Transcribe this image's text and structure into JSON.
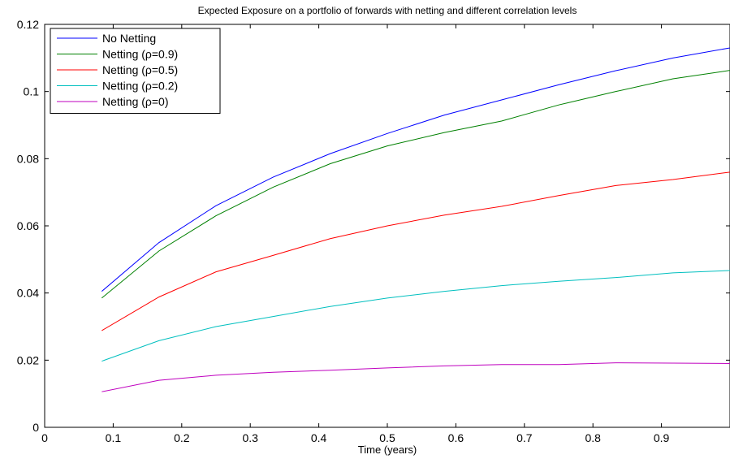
{
  "chart_data": {
    "type": "line",
    "title": "Expected Exposure on a portfolio of forwards with netting and different correlation levels",
    "xlabel": "Time (years)",
    "ylabel": "",
    "xlim": [
      0,
      1
    ],
    "ylim": [
      0,
      0.12
    ],
    "xticks": [
      "0",
      "0.1",
      "0.2",
      "0.3",
      "0.4",
      "0.5",
      "0.6",
      "0.7",
      "0.8",
      "0.9"
    ],
    "xtick_values": [
      0,
      0.1,
      0.2,
      0.3,
      0.4,
      0.5,
      0.6,
      0.7,
      0.8,
      0.9
    ],
    "yticks": [
      "0",
      "0.02",
      "0.04",
      "0.06",
      "0.08",
      "0.1",
      "0.12"
    ],
    "ytick_values": [
      0,
      0.02,
      0.04,
      0.06,
      0.08,
      0.1,
      0.12
    ],
    "grid": false,
    "legend_position": "top-left",
    "x": [
      0.0833,
      0.1667,
      0.25,
      0.3333,
      0.4167,
      0.5,
      0.5833,
      0.6667,
      0.75,
      0.8333,
      0.9167,
      1.0
    ],
    "series": [
      {
        "name": "No Netting",
        "color": "#0000ff",
        "values": [
          0.0405,
          0.055,
          0.066,
          0.0745,
          0.0815,
          0.0875,
          0.093,
          0.0975,
          0.102,
          0.1062,
          0.11,
          0.113
        ]
      },
      {
        "name": "Netting (ρ=0.9)",
        "color": "#008000",
        "values": [
          0.0385,
          0.0525,
          0.063,
          0.0715,
          0.0785,
          0.0838,
          0.0878,
          0.0912,
          0.096,
          0.1,
          0.1038,
          0.1063
        ]
      },
      {
        "name": "Netting (ρ=0.5)",
        "color": "#ff0000",
        "values": [
          0.0288,
          0.0388,
          0.0463,
          0.0512,
          0.0562,
          0.06,
          0.0632,
          0.0658,
          0.069,
          0.072,
          0.0738,
          0.076
        ]
      },
      {
        "name": "Netting (ρ=0.2)",
        "color": "#00bfbf",
        "values": [
          0.0197,
          0.0258,
          0.03,
          0.033,
          0.036,
          0.0385,
          0.0405,
          0.0422,
          0.0435,
          0.0446,
          0.046,
          0.0467
        ]
      },
      {
        "name": "Netting (ρ=0)",
        "color": "#bf00bf",
        "values": [
          0.0106,
          0.014,
          0.0155,
          0.0164,
          0.017,
          0.0177,
          0.0183,
          0.0187,
          0.0187,
          0.0192,
          0.0191,
          0.019
        ]
      }
    ]
  }
}
